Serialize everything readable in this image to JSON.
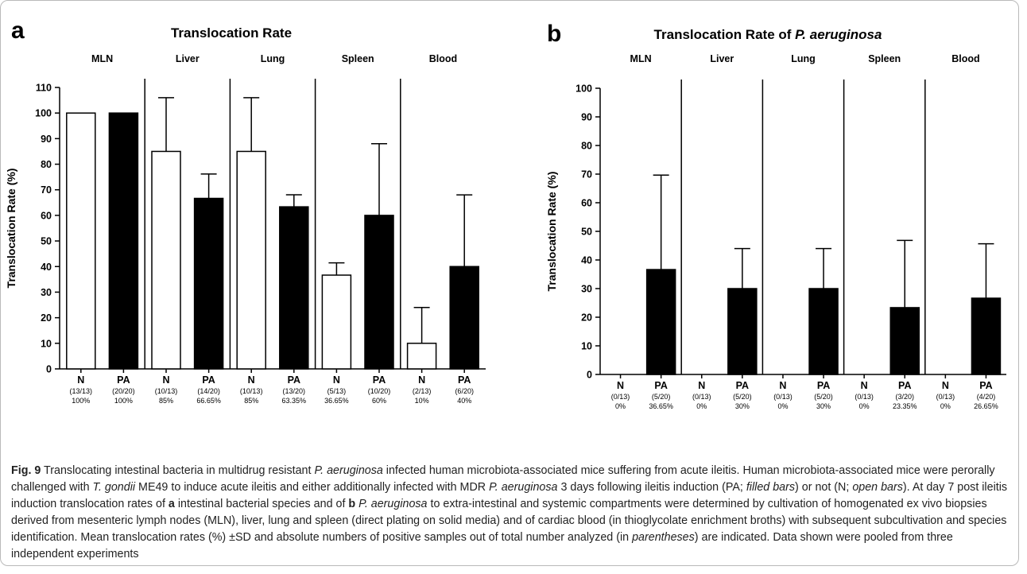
{
  "chart_data": [
    {
      "type": "bar",
      "panel_letter": "a",
      "title": "Translocation Rate",
      "ylabel": "Translocation Rate (%)",
      "ylim": [
        0,
        110
      ],
      "yticks": [
        "0",
        "10",
        "20",
        "30",
        "40",
        "50",
        "60",
        "70",
        "80",
        "90",
        "100",
        "110"
      ],
      "groups": [
        "MLN",
        "Liver",
        "Lung",
        "Spleen",
        "Blood"
      ],
      "bars": [
        {
          "group": "MLN",
          "label": "N",
          "count": "(13/13)",
          "pct": "100%",
          "value": 100,
          "sd": 0,
          "filled": false
        },
        {
          "group": "MLN",
          "label": "PA",
          "count": "(20/20)",
          "pct": "100%",
          "value": 100,
          "sd": 0,
          "filled": true
        },
        {
          "group": "Liver",
          "label": "N",
          "count": "(10/13)",
          "pct": "85%",
          "value": 85,
          "sd": 21,
          "filled": false
        },
        {
          "group": "Liver",
          "label": "PA",
          "count": "(14/20)",
          "pct": "66.65%",
          "value": 66.65,
          "sd": 9.5,
          "filled": true
        },
        {
          "group": "Lung",
          "label": "N",
          "count": "(10/13)",
          "pct": "85%",
          "value": 85,
          "sd": 21,
          "filled": false
        },
        {
          "group": "Lung",
          "label": "PA",
          "count": "(13/20)",
          "pct": "63.35%",
          "value": 63.35,
          "sd": 4.7,
          "filled": true
        },
        {
          "group": "Spleen",
          "label": "N",
          "count": "(5/13)",
          "pct": "36.65%",
          "value": 36.65,
          "sd": 4.8,
          "filled": false
        },
        {
          "group": "Spleen",
          "label": "PA",
          "count": "(10/20)",
          "pct": "60%",
          "value": 60,
          "sd": 28,
          "filled": true
        },
        {
          "group": "Blood",
          "label": "N",
          "count": "(2/13)",
          "pct": "10%",
          "value": 10,
          "sd": 14,
          "filled": false
        },
        {
          "group": "Blood",
          "label": "PA",
          "count": "(6/20)",
          "pct": "40%",
          "value": 40,
          "sd": 28,
          "filled": true
        }
      ]
    },
    {
      "type": "bar",
      "panel_letter": "b",
      "title": "Translocation Rate of P. aeruginosa",
      "title_plain": "Translocation Rate of ",
      "title_italic": "P. aeruginosa",
      "ylabel": "Translocation Rate (%)",
      "ylim": [
        0,
        100
      ],
      "yticks": [
        "0",
        "10",
        "20",
        "30",
        "40",
        "50",
        "60",
        "70",
        "80",
        "90",
        "100"
      ],
      "groups": [
        "MLN",
        "Liver",
        "Lung",
        "Spleen",
        "Blood"
      ],
      "bars": [
        {
          "group": "MLN",
          "label": "N",
          "count": "(0/13)",
          "pct": "0%",
          "value": 0,
          "sd": 0,
          "filled": false
        },
        {
          "group": "MLN",
          "label": "PA",
          "count": "(5/20)",
          "pct": "36.65%",
          "value": 36.65,
          "sd": 33,
          "filled": true
        },
        {
          "group": "Liver",
          "label": "N",
          "count": "(0/13)",
          "pct": "0%",
          "value": 0,
          "sd": 0,
          "filled": false
        },
        {
          "group": "Liver",
          "label": "PA",
          "count": "(5/20)",
          "pct": "30%",
          "value": 30,
          "sd": 14,
          "filled": true
        },
        {
          "group": "Lung",
          "label": "N",
          "count": "(0/13)",
          "pct": "0%",
          "value": 0,
          "sd": 0,
          "filled": false
        },
        {
          "group": "Lung",
          "label": "PA",
          "count": "(5/20)",
          "pct": "30%",
          "value": 30,
          "sd": 14,
          "filled": true
        },
        {
          "group": "Spleen",
          "label": "N",
          "count": "(0/13)",
          "pct": "0%",
          "value": 0,
          "sd": 0,
          "filled": false
        },
        {
          "group": "Spleen",
          "label": "PA",
          "count": "(3/20)",
          "pct": "23.35%",
          "value": 23.35,
          "sd": 23.5,
          "filled": true
        },
        {
          "group": "Blood",
          "label": "N",
          "count": "(0/13)",
          "pct": "0%",
          "value": 0,
          "sd": 0,
          "filled": false
        },
        {
          "group": "Blood",
          "label": "PA",
          "count": "(4/20)",
          "pct": "26.65%",
          "value": 26.65,
          "sd": 19,
          "filled": true
        }
      ]
    }
  ],
  "caption": {
    "fig_label": "Fig. 9",
    "text_1": " Translocating intestinal bacteria in multidrug resistant ",
    "italic_1": "P. aeruginosa",
    "text_2": " infected human microbiota-associated mice suffering from acute ileitis. Human microbiota-associated mice were perorally challenged with ",
    "italic_2": "T. gondii",
    "text_3": " ME49 to induce acute ileitis and either additionally infected with MDR ",
    "italic_3": "P. aeruginosa",
    "text_4": " 3 days following ileitis induction (PA; ",
    "italic_4": "filled bars",
    "text_5": ") or not (N; ",
    "italic_5": "open bars",
    "text_6": "). At day 7 post ileitis induction translocation rates of ",
    "bold_a": "a",
    "text_7": " intestinal bacterial species and of ",
    "bold_b": "b",
    "text_8": " ",
    "italic_6": "P. aeruginosa",
    "text_9": " to extra-intestinal and systemic compartments were determined by cultivation of homogenated ex vivo biopsies derived from mesenteric lymph nodes (MLN), liver, lung and spleen (direct plating on solid media) and of cardiac blood (in thioglycolate enrichment broths) with subsequent subcultivation and species identification. Mean translocation rates (%) ±SD and absolute numbers of positive samples out of total number analyzed (in ",
    "italic_7": "parentheses",
    "text_10": ") are indicated. Data shown were pooled from three independent experiments"
  }
}
